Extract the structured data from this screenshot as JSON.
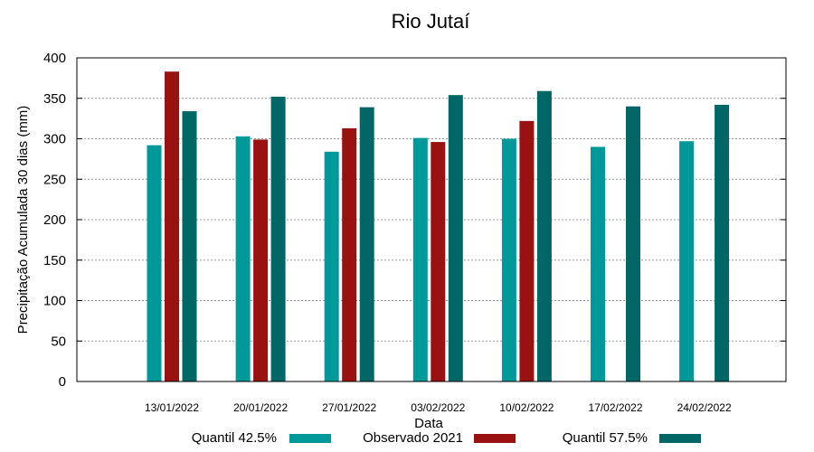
{
  "chart_data": {
    "type": "bar",
    "title": "Rio Jutaí",
    "xlabel": "Data",
    "ylabel": "Precipitação Acumulada 30 dias (mm)",
    "ylim": [
      0,
      400
    ],
    "yticks": [
      0,
      50,
      100,
      150,
      200,
      250,
      300,
      350,
      400
    ],
    "grid": true,
    "legend_position": "bottom",
    "categories": [
      "13/01/2022",
      "20/01/2022",
      "27/01/2022",
      "03/02/2022",
      "10/02/2022",
      "17/02/2022",
      "24/02/2022"
    ],
    "series": [
      {
        "name": "Quantil 42.5%",
        "color": "#009999",
        "values": [
          292,
          303,
          284,
          301,
          300,
          290,
          297
        ]
      },
      {
        "name": "Observado 2021",
        "color": "#991111",
        "values": [
          383,
          299,
          313,
          296,
          322,
          null,
          null
        ]
      },
      {
        "name": "Quantil 57.5%",
        "color": "#006666",
        "values": [
          334,
          352,
          339,
          354,
          359,
          340,
          342
        ]
      }
    ]
  }
}
